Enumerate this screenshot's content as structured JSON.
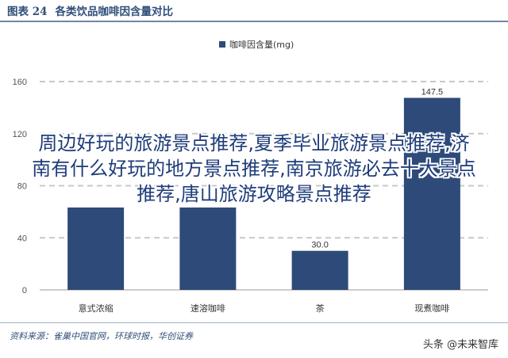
{
  "header": {
    "figure_number": "图表 24",
    "figure_title": "各类饮品咖啡因含量对比"
  },
  "overlay_text": "周边好玩的旅游景点推荐,夏季毕业旅游景点推荐,济南有什么好玩的地方景点推荐,南京旅游必去十大景点推荐,唐山旅游攻略景点推荐",
  "footer": {
    "source": "资料来源：雀巢中国官网，环球时报，华创证券",
    "watermark": "头条 @未来智库"
  },
  "colors": {
    "bar": "#2e4a78",
    "grid": "#c8c8c8",
    "header_rule": "#6f86a6"
  },
  "chart_data": {
    "type": "bar",
    "title": "",
    "legend": "top-center",
    "categories": [
      "意式浓缩",
      "速溶咖啡",
      "茶",
      "现煮咖啡"
    ],
    "series": [
      {
        "name": "咖啡因含量(mg)",
        "values": [
          null,
          null,
          30.0,
          147.5
        ]
      }
    ],
    "data_labels": [
      null,
      null,
      "30.0",
      "147.5"
    ],
    "yticks": [
      0,
      40,
      80,
      120,
      160
    ],
    "ytick_labels": [
      "0",
      "40",
      "80",
      "120",
      "160"
    ],
    "ylim": [
      0,
      160
    ],
    "grid": true
  }
}
